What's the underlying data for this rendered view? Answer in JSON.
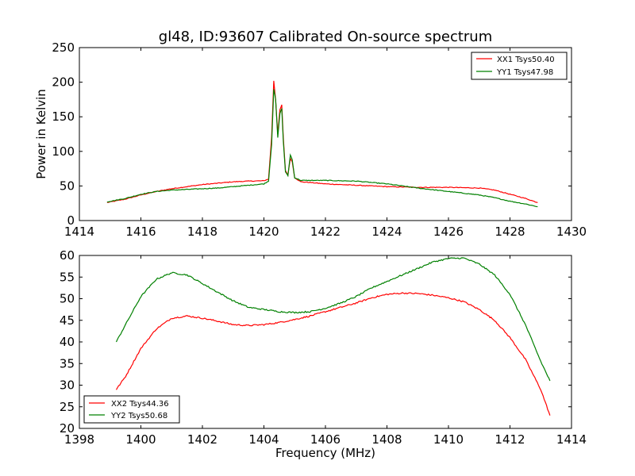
{
  "figure": {
    "title": "gl48, ID:93607 Calibrated On-source spectrum"
  },
  "chart_data": [
    {
      "type": "line",
      "xlabel": "",
      "ylabel": "Power in Kelvin",
      "xlim": [
        1414,
        1430
      ],
      "ylim": [
        0,
        250
      ],
      "xticks": [
        1414,
        1416,
        1418,
        1420,
        1422,
        1424,
        1426,
        1428,
        1430
      ],
      "yticks": [
        0,
        50,
        100,
        150,
        200,
        250
      ],
      "grid": false,
      "legend_position": "top-right",
      "series": [
        {
          "name": "XX1 Tsys50.40",
          "color": "#ff0000",
          "points": [
            [
              1414.9,
              26
            ],
            [
              1415.5,
              31
            ],
            [
              1416,
              37
            ],
            [
              1416.5,
              42
            ],
            [
              1417,
              46
            ],
            [
              1417.5,
              49
            ],
            [
              1418,
              52
            ],
            [
              1418.5,
              54
            ],
            [
              1419,
              56
            ],
            [
              1419.5,
              57
            ],
            [
              1420,
              57.5
            ],
            [
              1420.15,
              60
            ],
            [
              1420.25,
              120
            ],
            [
              1420.32,
              202
            ],
            [
              1420.38,
              175
            ],
            [
              1420.45,
              125
            ],
            [
              1420.52,
              160
            ],
            [
              1420.58,
              167
            ],
            [
              1420.63,
              120
            ],
            [
              1420.7,
              72
            ],
            [
              1420.78,
              66
            ],
            [
              1420.86,
              90
            ],
            [
              1420.92,
              85
            ],
            [
              1421,
              62
            ],
            [
              1421.2,
              56
            ],
            [
              1421.5,
              55
            ],
            [
              1422,
              53
            ],
            [
              1423,
              51
            ],
            [
              1424,
              49
            ],
            [
              1425,
              48
            ],
            [
              1426,
              48
            ],
            [
              1427,
              47
            ],
            [
              1427.5,
              44
            ],
            [
              1428,
              38
            ],
            [
              1428.5,
              32
            ],
            [
              1428.9,
              26
            ]
          ]
        },
        {
          "name": "YY1 Tsys47.98",
          "color": "#008000",
          "points": [
            [
              1414.9,
              27
            ],
            [
              1415.5,
              32
            ],
            [
              1416,
              38
            ],
            [
              1416.5,
              42
            ],
            [
              1417,
              44
            ],
            [
              1417.5,
              45
            ],
            [
              1418,
              46
            ],
            [
              1418.5,
              47
            ],
            [
              1419,
              49
            ],
            [
              1419.5,
              51
            ],
            [
              1420,
              53
            ],
            [
              1420.15,
              57
            ],
            [
              1420.25,
              110
            ],
            [
              1420.32,
              190
            ],
            [
              1420.38,
              175
            ],
            [
              1420.45,
              120
            ],
            [
              1420.52,
              155
            ],
            [
              1420.58,
              162
            ],
            [
              1420.63,
              115
            ],
            [
              1420.7,
              70
            ],
            [
              1420.78,
              65
            ],
            [
              1420.86,
              95
            ],
            [
              1420.92,
              88
            ],
            [
              1421,
              62
            ],
            [
              1421.2,
              58
            ],
            [
              1421.5,
              58
            ],
            [
              1422,
              58
            ],
            [
              1423,
              57
            ],
            [
              1424,
              53
            ],
            [
              1425,
              47
            ],
            [
              1426,
              42
            ],
            [
              1427,
              37
            ],
            [
              1427.5,
              33
            ],
            [
              1428,
              28
            ],
            [
              1428.5,
              24
            ],
            [
              1428.9,
              20
            ]
          ]
        }
      ]
    },
    {
      "type": "line",
      "xlabel": "Frequency (MHz)",
      "ylabel": "",
      "xlim": [
        1398,
        1414
      ],
      "ylim": [
        20,
        60
      ],
      "xticks": [
        1398,
        1400,
        1402,
        1404,
        1406,
        1408,
        1410,
        1412,
        1414
      ],
      "yticks": [
        20,
        25,
        30,
        35,
        40,
        45,
        50,
        55,
        60
      ],
      "grid": false,
      "legend_position": "bottom-left",
      "series": [
        {
          "name": "XX2 Tsys44.36",
          "color": "#ff0000",
          "points": [
            [
              1399.2,
              29
            ],
            [
              1399.5,
              32
            ],
            [
              1400,
              38.5
            ],
            [
              1400.5,
              43
            ],
            [
              1401,
              45.5
            ],
            [
              1401.5,
              46
            ],
            [
              1402,
              45.5
            ],
            [
              1402.5,
              44.8
            ],
            [
              1403,
              44
            ],
            [
              1403.5,
              43.8
            ],
            [
              1404,
              44
            ],
            [
              1404.5,
              44.5
            ],
            [
              1405,
              45.2
            ],
            [
              1405.5,
              46
            ],
            [
              1406,
              47
            ],
            [
              1406.5,
              48
            ],
            [
              1407,
              49
            ],
            [
              1407.5,
              50.2
            ],
            [
              1408,
              51
            ],
            [
              1408.5,
              51.3
            ],
            [
              1409,
              51.2
            ],
            [
              1409.5,
              50.8
            ],
            [
              1410,
              50.2
            ],
            [
              1410.5,
              49.3
            ],
            [
              1411,
              47.5
            ],
            [
              1411.5,
              45
            ],
            [
              1412,
              41
            ],
            [
              1412.5,
              36
            ],
            [
              1413,
              29
            ],
            [
              1413.3,
              23
            ]
          ]
        },
        {
          "name": "YY2 Tsys50.68",
          "color": "#008000",
          "points": [
            [
              1399.2,
              40
            ],
            [
              1399.5,
              44
            ],
            [
              1400,
              50.5
            ],
            [
              1400.5,
              54.5
            ],
            [
              1401,
              56
            ],
            [
              1401.5,
              55.5
            ],
            [
              1402,
              53.5
            ],
            [
              1402.5,
              51.5
            ],
            [
              1403,
              49.5
            ],
            [
              1403.5,
              48
            ],
            [
              1404,
              47.5
            ],
            [
              1404.5,
              47
            ],
            [
              1405,
              46.8
            ],
            [
              1405.5,
              47
            ],
            [
              1406,
              47.8
            ],
            [
              1406.5,
              49
            ],
            [
              1407,
              50.5
            ],
            [
              1407.5,
              52.5
            ],
            [
              1408,
              54
            ],
            [
              1408.5,
              55.5
            ],
            [
              1409,
              57
            ],
            [
              1409.5,
              58.5
            ],
            [
              1410,
              59.3
            ],
            [
              1410.5,
              59.4
            ],
            [
              1411,
              58
            ],
            [
              1411.5,
              55.5
            ],
            [
              1412,
              51
            ],
            [
              1412.5,
              44
            ],
            [
              1413,
              35.5
            ],
            [
              1413.3,
              31
            ]
          ]
        }
      ]
    }
  ]
}
